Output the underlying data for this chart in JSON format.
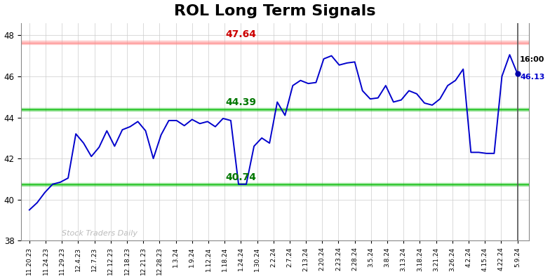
{
  "title": "ROL Long Term Signals",
  "x_labels": [
    "11.20.23",
    "11.24.23",
    "11.29.23",
    "12.4.23",
    "12.7.23",
    "12.12.23",
    "12.18.23",
    "12.21.23",
    "12.28.23",
    "1.3.24",
    "1.9.24",
    "1.12.24",
    "1.18.24",
    "1.24.24",
    "1.30.24",
    "2.2.24",
    "2.7.24",
    "2.13.24",
    "2.20.24",
    "2.23.24",
    "2.28.24",
    "3.5.24",
    "3.8.24",
    "3.13.24",
    "3.18.24",
    "3.21.24",
    "3.26.24",
    "4.2.24",
    "4.15.24",
    "4.22.24",
    "5.9.24"
  ],
  "y_values": [
    39.5,
    39.85,
    40.35,
    40.75,
    40.85,
    41.05,
    43.2,
    42.75,
    42.1,
    42.55,
    43.35,
    42.6,
    43.4,
    43.55,
    43.8,
    43.35,
    42.0,
    43.15,
    43.85,
    43.85,
    43.6,
    43.9,
    43.7,
    43.8,
    43.55,
    43.95,
    43.85,
    40.75,
    40.75,
    42.6,
    43.0,
    42.75,
    44.75,
    44.1,
    45.55,
    45.8,
    45.65,
    45.7,
    46.85,
    47.0,
    46.55,
    46.65,
    46.7,
    45.3,
    44.9,
    44.95,
    45.55,
    44.75,
    44.85,
    45.3,
    45.15,
    44.7,
    44.6,
    44.9,
    45.55,
    45.8,
    46.35,
    42.3,
    42.3,
    42.25,
    42.25,
    46.0,
    47.05,
    46.13
  ],
  "line_color": "#0000cc",
  "last_point_color": "#0000aa",
  "hline_red": 47.64,
  "hline_green_upper": 44.39,
  "hline_green_lower": 40.74,
  "hline_red_color": "#ff8888",
  "hline_red_fill_alpha": 0.35,
  "hline_green_color": "#00bb00",
  "hline_green_fill_alpha": 0.3,
  "label_red": "47.64",
  "label_green_upper": "44.39",
  "label_green_lower": "40.74",
  "label_red_color": "#cc0000",
  "label_green_color": "#007700",
  "annotation_time": "16:00",
  "annotation_price": "46.13",
  "watermark": "Stock Traders Daily",
  "watermark_color": "#bbbbbb",
  "ylim": [
    38,
    48.6
  ],
  "yticks": [
    38,
    40,
    42,
    44,
    46,
    48
  ],
  "background_color": "#ffffff",
  "grid_color": "#cccccc",
  "title_fontsize": 16
}
